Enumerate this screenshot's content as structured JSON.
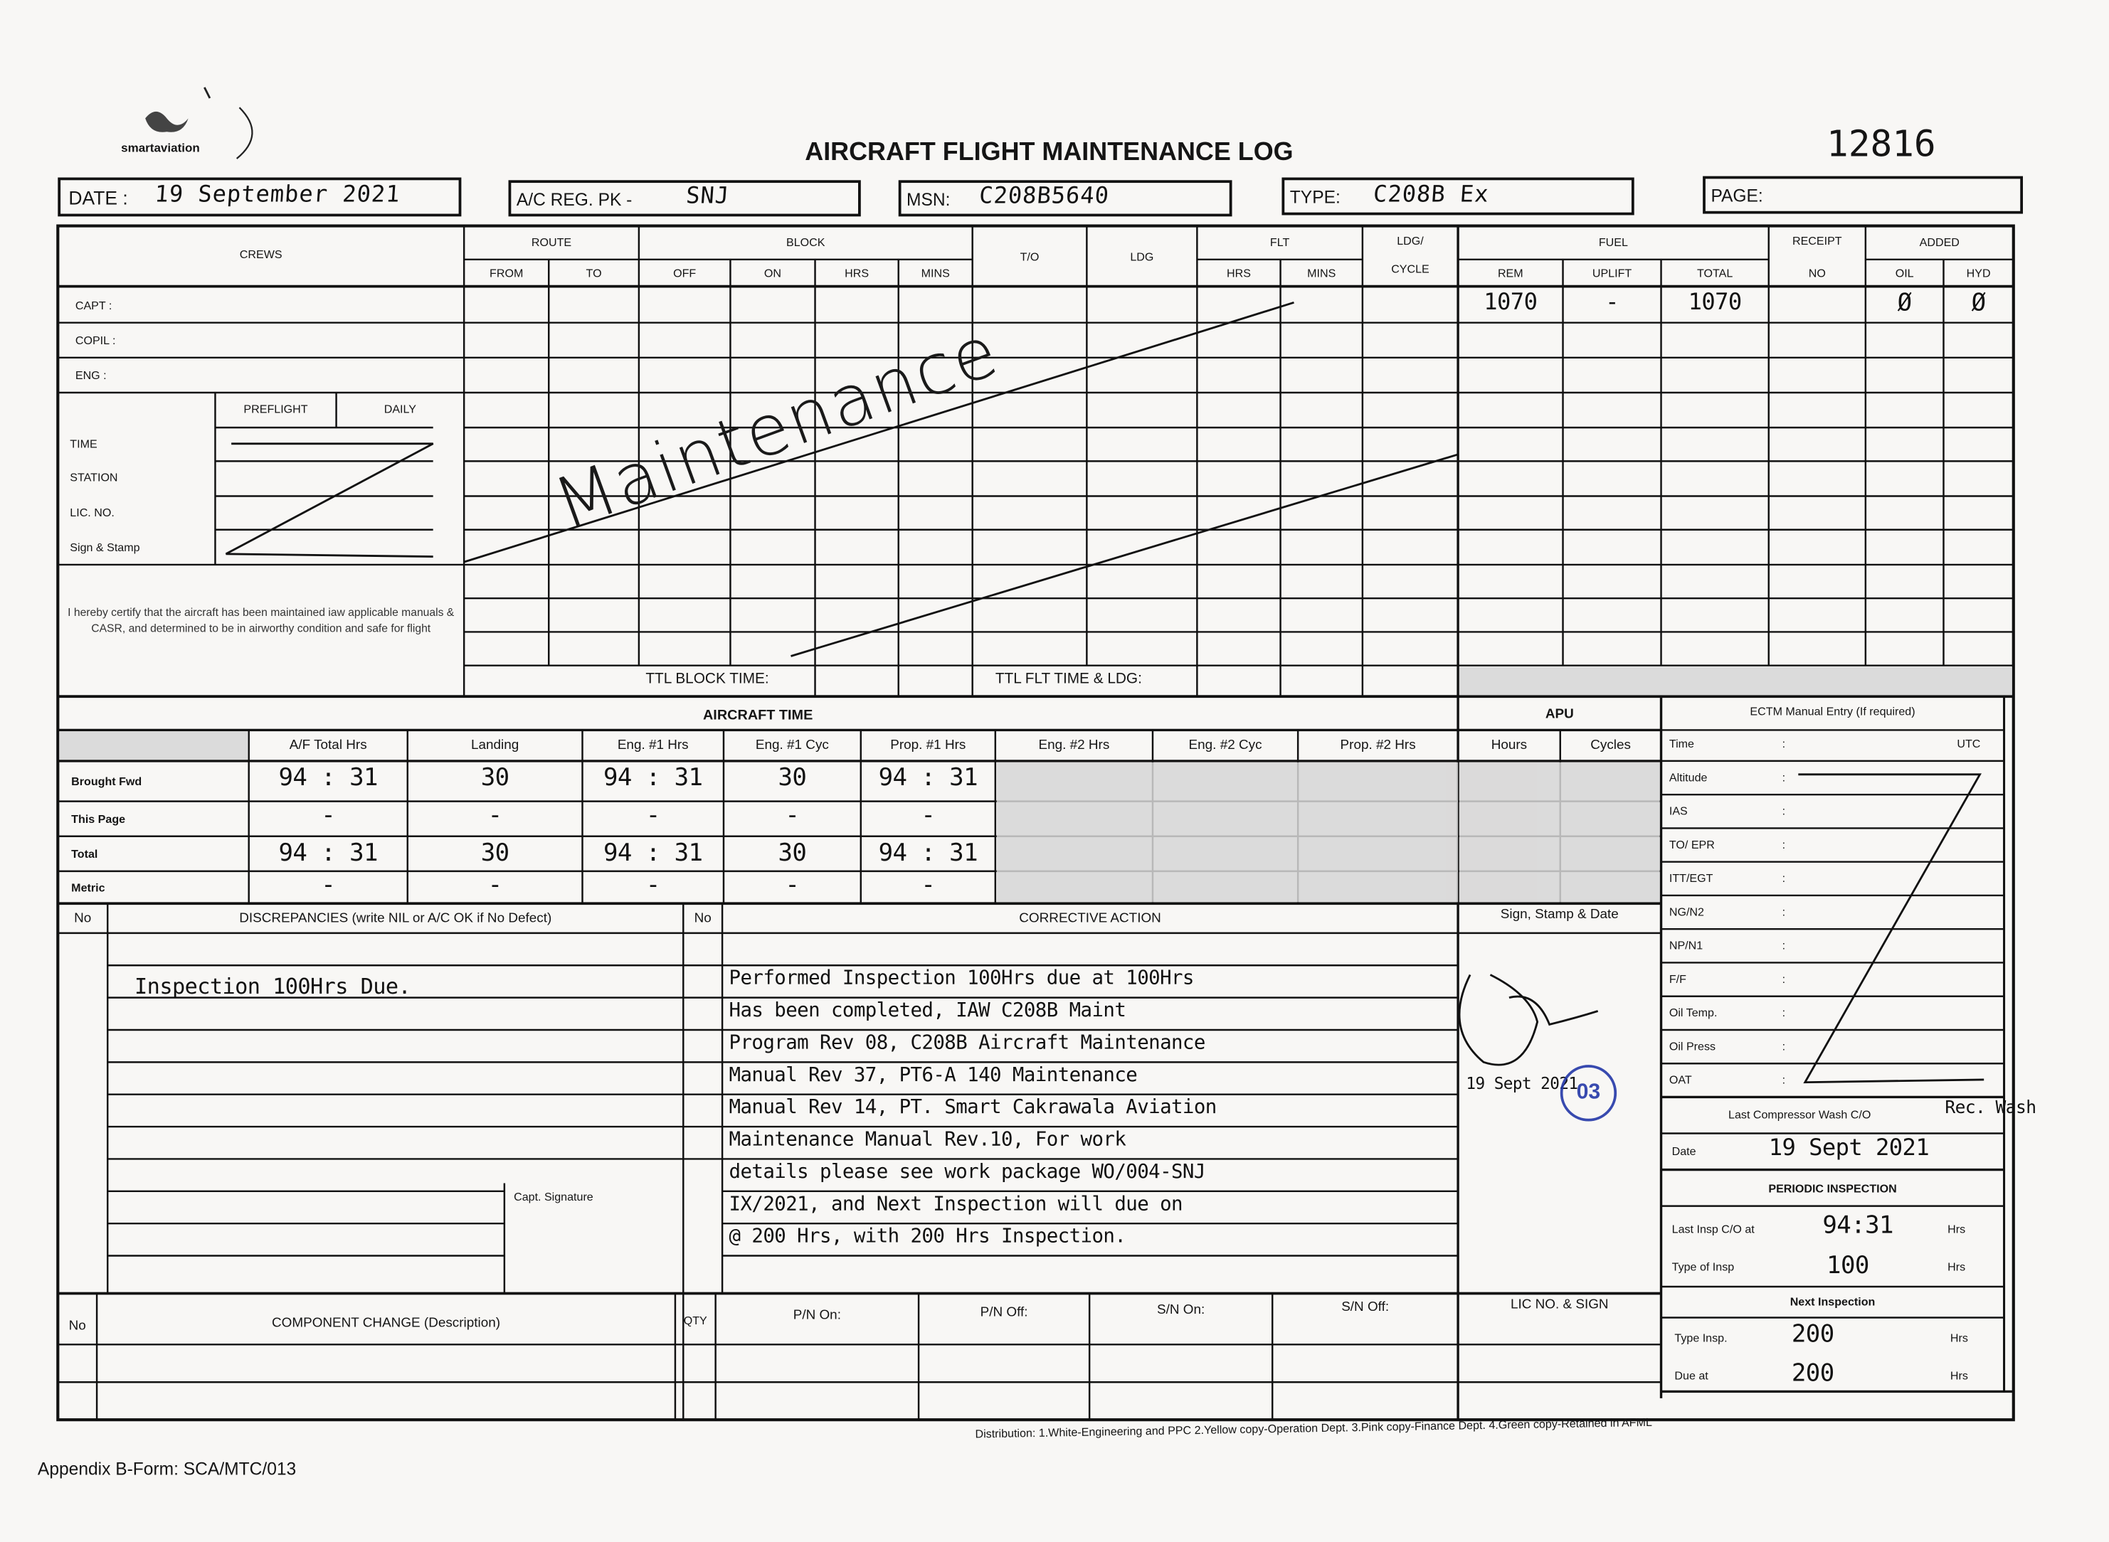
{
  "header": {
    "logo_text": "smartaviation",
    "title": "AIRCRAFT FLIGHT MAINTENANCE LOG",
    "form_number": "12816",
    "date_label": "DATE :",
    "date_value": "19 September 2021",
    "reg_label": "A/C REG. PK -",
    "reg_value": "SNJ",
    "msn_label": "MSN:",
    "msn_value": "C208B5640",
    "type_label": "TYPE:",
    "type_value": "C208B Ex",
    "page_label": "PAGE:"
  },
  "flight_log": {
    "crews": "CREWS",
    "route": "ROUTE",
    "from": "FROM",
    "to": "TO",
    "block": "BLOCK",
    "off": "OFF",
    "on": "ON",
    "hrs": "HRS",
    "mins": "MINS",
    "takeoff": "T/O",
    "ldg": "LDG",
    "flt": "FLT",
    "flt_hrs": "HRS",
    "flt_mins": "MINS",
    "ldg_cycle_1": "LDG/",
    "ldg_cycle_2": "CYCLE",
    "fuel": "FUEL",
    "rem": "REM",
    "uplift": "UPLIFT",
    "total": "TOTAL",
    "receipt": "RECEIPT",
    "receipt_no": "NO",
    "added": "ADDED",
    "oil": "OIL",
    "hyd": "HYD",
    "crew_rows": [
      "CAPT :",
      "COPIL :",
      "ENG :"
    ],
    "preflight": "PREFLIGHT",
    "daily": "DAILY",
    "check_rows": [
      "TIME",
      "STATION",
      "LIC. NO.",
      "Sign & Stamp"
    ],
    "certification": "I hereby certify that the aircraft has been maintained iaw applicable manuals & CASR, and determined to be in airworthy condition and safe for flight",
    "ttl_block_time": "TTL BLOCK TIME:",
    "ttl_flt_time": "TTL FLT TIME & LDG:",
    "entry": {
      "fuel_rem": "1070",
      "fuel_uplift": "-",
      "fuel_total": "1070",
      "oil": "Ø",
      "hyd": "Ø",
      "remark": "Maintenance"
    }
  },
  "aircraft_time": {
    "title": "AIRCRAFT TIME",
    "columns": [
      "A/F Total Hrs",
      "Landing",
      "Eng. #1 Hrs",
      "Eng. #1 Cyc",
      "Prop. #1 Hrs",
      "Eng. #2 Hrs",
      "Eng. #2 Cyc",
      "Prop. #2 Hrs"
    ],
    "rows": [
      {
        "label": "Brought Fwd",
        "values": [
          "94 : 31",
          "30",
          "94 : 31",
          "30",
          "94 : 31"
        ]
      },
      {
        "label": "This Page",
        "values": [
          "-",
          "-",
          "-",
          "-",
          "-"
        ]
      },
      {
        "label": "Total",
        "values": [
          "94 : 31",
          "30",
          "94 : 31",
          "30",
          "94 : 31"
        ]
      },
      {
        "label": "Metric",
        "values": [
          "-",
          "-",
          "-",
          "-",
          "-"
        ]
      }
    ]
  },
  "apu": {
    "title": "APU",
    "hours": "Hours",
    "cycles": "Cycles"
  },
  "ectm": {
    "title": "ECTM Manual Entry (If required)",
    "rows": [
      {
        "label": "Time",
        "unit": "UTC"
      },
      {
        "label": "Altitude"
      },
      {
        "label": "IAS"
      },
      {
        "label": "TO/ EPR"
      },
      {
        "label": "ITT/EGT"
      },
      {
        "label": "NG/N2"
      },
      {
        "label": "NP/N1"
      },
      {
        "label": "F/F"
      },
      {
        "label": "Oil Temp."
      },
      {
        "label": "Oil Press"
      },
      {
        "label": "OAT"
      }
    ],
    "compressor_wash_label": "Last Compressor Wash C/O",
    "compressor_wash_value": "Rec. Wash",
    "date_label": "Date",
    "date_value": "19 Sept 2021"
  },
  "periodic_inspection": {
    "title": "PERIODIC INSPECTION",
    "last_insp_label": "Last Insp C/O at",
    "last_insp_value": "94:31",
    "type_label": "Type of Insp",
    "type_value": "100",
    "next_title": "Next Inspection",
    "next_type_label": "Type Insp.",
    "next_type_value": "200",
    "due_label": "Due at",
    "due_value": "200",
    "unit": "Hrs"
  },
  "discrepancies": {
    "no": "No",
    "header": "DISCREPANCIES (write NIL or A/C OK if No Defect)",
    "corrective_header": "CORRECTIVE ACTION",
    "sign_header": "Sign, Stamp & Date",
    "entry": "Inspection 100Hrs Due.",
    "corrective_lines": [
      "Performed Inspection 100Hrs due at 100Hrs",
      "Has been completed, IAW C208B Maint",
      "Program Rev 08, C208B Aircraft Maintenance",
      "Manual Rev 37, PT6-A 140 Maintenance",
      "Manual Rev 14, PT. Smart Cakrawala Aviation",
      "Maintenance Manual Rev.10, For work",
      "details please see work package WO/004-SNJ",
      "IX/2021, and Next Inspection will due on",
      "@ 200 Hrs, with 200 Hrs Inspection."
    ],
    "capt_signature": "Capt. Signature",
    "sign_date": "19 Sept 2021",
    "stamp_text": "03"
  },
  "component_change": {
    "no": "No",
    "description": "COMPONENT CHANGE (Description)",
    "qty": "QTY",
    "pn_on": "P/N On:",
    "pn_off": "P/N Off:",
    "sn_on": "S/N On:",
    "sn_off": "S/N Off:",
    "lic_sign": "LIC NO. & SIGN"
  },
  "footer": {
    "distribution": "Distribution: 1.White-Engineering and PPC  2.Yellow copy-Operation Dept.  3.Pink copy-Finance Dept.  4.Green copy-Retained in AFML",
    "appendix": "Appendix B-Form: SCA/MTC/013"
  },
  "colors": {
    "ink": "#151515",
    "paper": "#f8f7f5",
    "shade": "#d6d6d6",
    "stamp": "#2438a8"
  }
}
